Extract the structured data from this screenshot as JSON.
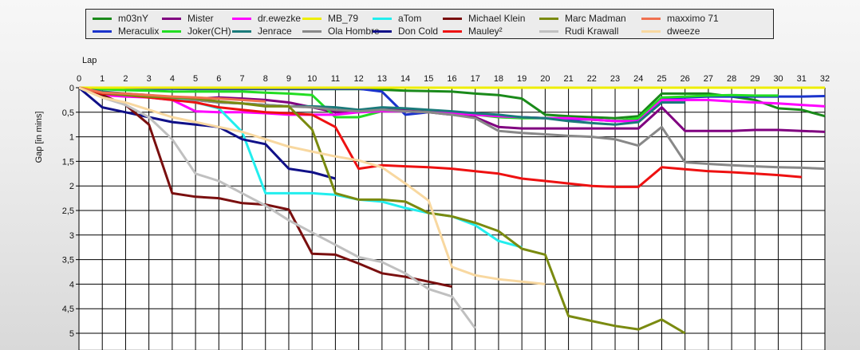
{
  "chart_data": {
    "type": "line",
    "xlabel": "Lap",
    "ylabel": "Gap [in mins]",
    "xlim": [
      0,
      32
    ],
    "ylim": [
      0,
      5
    ],
    "y_inverted": true,
    "x_ticks": [
      "0",
      "1",
      "2",
      "3",
      "4",
      "5",
      "6",
      "7",
      "8",
      "9",
      "10",
      "11",
      "12",
      "13",
      "14",
      "15",
      "16",
      "17",
      "18",
      "19",
      "20",
      "21",
      "22",
      "23",
      "24",
      "25",
      "26",
      "27",
      "28",
      "29",
      "30",
      "31",
      "32"
    ],
    "y_ticks": [
      "0",
      "0,5",
      "1",
      "1,5",
      "2",
      "2,5",
      "3",
      "3,5",
      "4",
      "4,5",
      "5"
    ],
    "grid": true,
    "legend_position": "top",
    "series": [
      {
        "name": "m03nY",
        "color": "#1a8a1a",
        "x": [
          0,
          1,
          2,
          3,
          4,
          5,
          6,
          7,
          8,
          9,
          10,
          11,
          12,
          13,
          14,
          15,
          16,
          17,
          18,
          19,
          20,
          21,
          22,
          23,
          24,
          25,
          26,
          27,
          28,
          29,
          30,
          31,
          32
        ],
        "y": [
          0,
          0.02,
          0.02,
          0.02,
          0.02,
          0.03,
          0.03,
          0.03,
          0.03,
          0.03,
          0.03,
          0.03,
          0.03,
          0.04,
          0.06,
          0.07,
          0.08,
          0.12,
          0.15,
          0.22,
          0.55,
          0.58,
          0.6,
          0.62,
          0.58,
          0.12,
          0.12,
          0.12,
          0.18,
          0.25,
          0.42,
          0.45,
          0.58
        ]
      },
      {
        "name": "Meraculix",
        "color": "#1a33cc",
        "x": [
          0,
          1,
          2,
          3,
          4,
          5,
          6,
          7,
          8,
          9,
          10,
          11,
          12,
          13,
          14,
          15,
          16,
          17,
          18,
          19,
          20,
          21,
          22,
          23,
          24,
          25,
          26,
          27,
          28,
          29,
          30,
          31,
          32
        ],
        "y": [
          0,
          0.02,
          0.02,
          0.02,
          0.02,
          0.02,
          0.02,
          0.02,
          0.02,
          0.02,
          0.02,
          0.02,
          0.02,
          0.08,
          0.55,
          0.5,
          0.5,
          0.55,
          0.58,
          0.6,
          0.62,
          0.65,
          0.65,
          0.68,
          0.66,
          0.22,
          0.2,
          0.18,
          0.18,
          0.18,
          0.18,
          0.18,
          0.17
        ]
      },
      {
        "name": "Mister",
        "color": "#800080",
        "x": [
          0,
          1,
          2,
          3,
          4,
          5,
          6,
          7,
          8,
          9,
          10,
          11,
          12,
          13,
          14,
          15,
          16,
          17,
          18,
          19,
          20,
          21,
          22,
          23,
          24,
          25,
          26,
          27,
          28,
          29,
          30,
          31,
          32
        ],
        "y": [
          0,
          0.1,
          0.15,
          0.2,
          0.22,
          0.22,
          0.2,
          0.22,
          0.25,
          0.3,
          0.4,
          0.5,
          0.48,
          0.45,
          0.45,
          0.5,
          0.55,
          0.6,
          0.8,
          0.83,
          0.83,
          0.83,
          0.83,
          0.83,
          0.83,
          0.4,
          0.88,
          0.88,
          0.88,
          0.86,
          0.86,
          0.88,
          0.9
        ]
      },
      {
        "name": "Joker(CH)",
        "color": "#22dd22",
        "x": [
          0,
          1,
          2,
          3,
          4,
          5,
          6,
          7,
          8,
          9,
          10,
          11,
          12,
          13,
          14,
          15,
          16,
          17,
          18,
          19,
          20,
          21,
          22,
          23,
          24,
          25,
          26,
          27,
          28,
          29,
          30
        ],
        "y": [
          0,
          0.03,
          0.05,
          0.06,
          0.08,
          0.08,
          0.08,
          0.08,
          0.1,
          0.12,
          0.15,
          0.6,
          0.6,
          0.48,
          0.48,
          0.5,
          0.52,
          0.55,
          0.6,
          0.62,
          0.62,
          0.62,
          0.65,
          0.68,
          0.62,
          0.2,
          0.18,
          0.16,
          0.15,
          0.16,
          0.16
        ]
      },
      {
        "name": "dr.ewezke",
        "color": "#ff00ff",
        "x": [
          0,
          1,
          2,
          3,
          4,
          5,
          6,
          7,
          8,
          9,
          10,
          11,
          12,
          13,
          14,
          15,
          16,
          17,
          18,
          19,
          20,
          21,
          22,
          23,
          24,
          25,
          26,
          27,
          28,
          29,
          30,
          31,
          32
        ],
        "y": [
          0,
          0.15,
          0.18,
          0.2,
          0.25,
          0.48,
          0.5,
          0.5,
          0.52,
          0.55,
          0.55,
          0.55,
          0.5,
          0.48,
          0.48,
          0.5,
          0.52,
          0.55,
          0.58,
          0.6,
          0.62,
          0.62,
          0.65,
          0.68,
          0.68,
          0.25,
          0.25,
          0.25,
          0.28,
          0.3,
          0.32,
          0.35,
          0.38
        ]
      },
      {
        "name": "Jenrace",
        "color": "#1a7a7a",
        "x": [
          0,
          1,
          2,
          3,
          4,
          5,
          6,
          7,
          8,
          9,
          10,
          11,
          12,
          13,
          14,
          15,
          16,
          17,
          18,
          19,
          20,
          21,
          22,
          23,
          24,
          25,
          26
        ],
        "y": [
          0,
          0.08,
          0.12,
          0.15,
          0.2,
          0.25,
          0.3,
          0.32,
          0.35,
          0.38,
          0.38,
          0.4,
          0.45,
          0.4,
          0.42,
          0.45,
          0.48,
          0.52,
          0.55,
          0.6,
          0.62,
          0.68,
          0.72,
          0.75,
          0.7,
          0.3,
          0.3
        ]
      },
      {
        "name": "MB_79",
        "color": "#eeee00",
        "x": [
          0,
          1,
          2,
          3,
          4,
          5,
          6,
          7,
          8,
          9,
          10,
          11,
          12,
          13,
          14,
          15,
          16,
          17,
          18,
          19,
          20,
          21,
          22,
          23,
          24,
          25,
          26,
          27,
          28,
          29,
          30,
          31,
          32
        ],
        "y": [
          0,
          0,
          0,
          0,
          0,
          0,
          0,
          0,
          0,
          0,
          0,
          0,
          0,
          0,
          0,
          0,
          0,
          0,
          0,
          0,
          0,
          0,
          0,
          0,
          0,
          0,
          0,
          0,
          0,
          0,
          0,
          0,
          0
        ]
      },
      {
        "name": "Ola Hombre",
        "color": "#888888",
        "x": [
          0,
          1,
          2,
          3,
          4,
          5,
          6,
          7,
          8,
          9,
          10,
          11,
          12,
          13,
          14,
          15,
          16,
          17,
          18,
          19,
          20,
          21,
          22,
          23,
          24,
          25,
          26,
          27,
          28,
          29,
          30,
          31,
          32
        ],
        "y": [
          0,
          0.12,
          0.15,
          0.18,
          0.22,
          0.25,
          0.3,
          0.32,
          0.35,
          0.38,
          0.4,
          0.45,
          0.48,
          0.45,
          0.48,
          0.5,
          0.55,
          0.62,
          0.88,
          0.92,
          0.95,
          0.98,
          1.0,
          1.05,
          1.18,
          0.8,
          1.52,
          1.55,
          1.58,
          1.6,
          1.62,
          1.63,
          1.65
        ]
      },
      {
        "name": "aTom",
        "color": "#22eeee",
        "x": [
          0,
          1,
          2,
          3,
          4,
          5,
          6,
          7,
          8,
          9,
          10,
          11,
          12,
          13,
          14,
          15,
          16,
          17,
          18,
          19
        ],
        "y": [
          0,
          0.12,
          0.15,
          0.18,
          0.22,
          0.3,
          0.42,
          0.9,
          2.15,
          2.15,
          2.15,
          2.18,
          2.28,
          2.32,
          2.45,
          2.55,
          2.62,
          2.8,
          3.12,
          3.25
        ]
      },
      {
        "name": "Don Cold",
        "color": "#101088",
        "x": [
          0,
          1,
          2,
          3,
          4,
          5,
          6,
          7,
          8,
          9,
          10,
          11
        ],
        "y": [
          0,
          0.4,
          0.5,
          0.6,
          0.7,
          0.75,
          0.8,
          1.05,
          1.15,
          1.65,
          1.72,
          1.85
        ]
      },
      {
        "name": "Michael Klein",
        "color": "#7a0f0f",
        "x": [
          0,
          1,
          2,
          3,
          4,
          5,
          6,
          7,
          8,
          9,
          10,
          11,
          12,
          13,
          14,
          15,
          16
        ],
        "y": [
          0,
          0.15,
          0.35,
          0.75,
          2.15,
          2.22,
          2.25,
          2.35,
          2.38,
          2.48,
          3.38,
          3.4,
          3.58,
          3.78,
          3.85,
          3.95,
          4.05
        ]
      },
      {
        "name": "Mauley²",
        "color": "#ee1111",
        "x": [
          0,
          1,
          2,
          3,
          4,
          5,
          6,
          7,
          8,
          9,
          10,
          11,
          12,
          13,
          14,
          15,
          16,
          17,
          18,
          19,
          20,
          21,
          22,
          23,
          24,
          25,
          26,
          27,
          28,
          29,
          30,
          31
        ],
        "y": [
          0,
          0.12,
          0.15,
          0.2,
          0.25,
          0.3,
          0.4,
          0.45,
          0.5,
          0.52,
          0.55,
          0.8,
          1.65,
          1.58,
          1.6,
          1.62,
          1.65,
          1.7,
          1.75,
          1.85,
          1.9,
          1.95,
          2.0,
          2.02,
          2.02,
          1.62,
          1.66,
          1.7,
          1.72,
          1.75,
          1.78,
          1.82
        ]
      },
      {
        "name": "Marc Madman",
        "color": "#7a8a10",
        "x": [
          0,
          1,
          2,
          3,
          4,
          5,
          6,
          7,
          8,
          9,
          10,
          11,
          12,
          13,
          14,
          15,
          16,
          17,
          18,
          19,
          20,
          21,
          22,
          23,
          24,
          25,
          26
        ],
        "y": [
          0,
          0.1,
          0.15,
          0.18,
          0.2,
          0.22,
          0.28,
          0.32,
          0.38,
          0.38,
          0.85,
          2.15,
          2.28,
          2.28,
          2.32,
          2.55,
          2.62,
          2.75,
          2.92,
          3.28,
          3.4,
          4.65,
          4.75,
          4.85,
          4.92,
          4.72,
          5.0
        ]
      },
      {
        "name": "Rudi Krawall",
        "color": "#c0c0c0",
        "x": [
          0,
          1,
          2,
          3,
          4,
          5,
          6,
          7,
          8,
          9,
          10,
          11,
          12,
          13,
          14,
          15,
          16,
          17
        ],
        "y": [
          0,
          0.2,
          0.35,
          0.6,
          1.05,
          1.75,
          1.9,
          2.15,
          2.4,
          2.7,
          2.95,
          3.2,
          3.45,
          3.55,
          3.78,
          4.1,
          4.25,
          4.9
        ]
      },
      {
        "name": "maxximo 71",
        "color": "#f07050",
        "x": [
          0,
          1,
          2,
          3,
          4,
          5,
          6,
          7,
          8
        ],
        "y": [
          0,
          0.1,
          0.12,
          0.15,
          0.18,
          0.2,
          0.22,
          0.25,
          0.28
        ]
      },
      {
        "name": "dweeze",
        "color": "#f8d8a0",
        "x": [
          0,
          1,
          2,
          3,
          4,
          5,
          6,
          7,
          8,
          9,
          10,
          11,
          12,
          13,
          14,
          15,
          16,
          17,
          18,
          19,
          20
        ],
        "y": [
          0,
          0.2,
          0.3,
          0.45,
          0.6,
          0.7,
          0.8,
          0.9,
          1.05,
          1.2,
          1.3,
          1.4,
          1.48,
          1.62,
          1.95,
          2.3,
          3.65,
          3.82,
          3.9,
          3.95,
          4.0
        ]
      }
    ]
  }
}
